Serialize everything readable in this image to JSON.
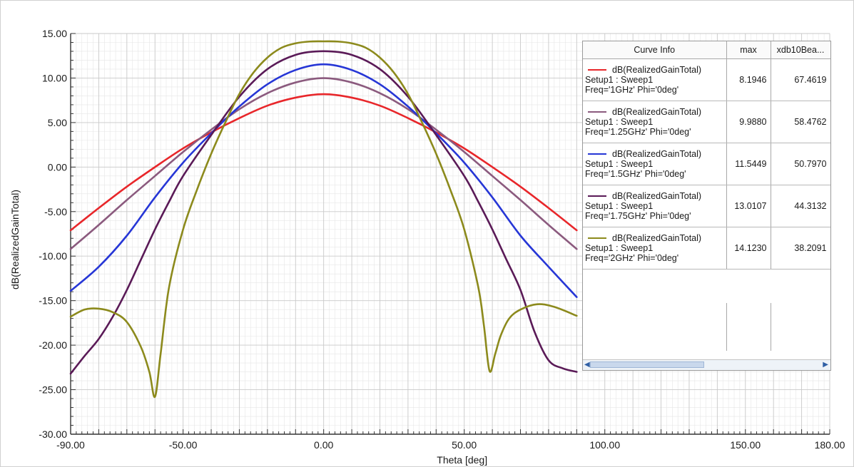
{
  "chart_data": {
    "type": "line",
    "title": "",
    "xlabel": "Theta [deg]",
    "ylabel": "dB(RealizedGainTotal)",
    "xlim": [
      -90,
      180
    ],
    "ylim": [
      -30,
      15
    ],
    "xticks": [
      "-90.00",
      "-50.00",
      "0.00",
      "50.00",
      "100.00",
      "150.00",
      "180.00"
    ],
    "yticks": [
      "15.00",
      "10.00",
      "5.00",
      "0.00",
      "-5.00",
      "-10.00",
      "-15.00",
      "-20.00",
      "-25.00",
      "-30.00"
    ],
    "grid": true,
    "series": [
      {
        "name": "dB(RealizedGainTotal) Setup1 : Sweep1 Freq='1GHz' Phi='0deg'",
        "color": "#e8262a",
        "x": [
          -90,
          -80,
          -70,
          -60,
          -50,
          -40,
          -30,
          -20,
          -10,
          0,
          10,
          20,
          30,
          40,
          50,
          60,
          70,
          80,
          90
        ],
        "y": [
          -7.1,
          -4.6,
          -2.2,
          0.0,
          2.1,
          3.9,
          5.5,
          6.9,
          7.8,
          8.19,
          7.8,
          6.9,
          5.5,
          3.9,
          2.1,
          0.0,
          -2.2,
          -4.6,
          -7.1
        ]
      },
      {
        "name": "dB(RealizedGainTotal) Setup1 : Sweep1 Freq='1.25GHz' Phi='0deg'",
        "color": "#8b5a7e",
        "x": [
          -90,
          -80,
          -70,
          -60,
          -50,
          -40,
          -30,
          -20,
          -10,
          0,
          10,
          20,
          30,
          40,
          50,
          60,
          70,
          80,
          90
        ],
        "y": [
          -9.2,
          -6.5,
          -3.7,
          -1.0,
          1.7,
          4.2,
          6.5,
          8.3,
          9.5,
          9.99,
          9.5,
          8.3,
          6.5,
          4.2,
          1.7,
          -1.0,
          -3.7,
          -6.5,
          -9.2
        ]
      },
      {
        "name": "dB(RealizedGainTotal) Setup1 : Sweep1 Freq='1.5GHz' Phi='0deg'",
        "color": "#2636d6",
        "x": [
          -90,
          -80,
          -70,
          -60,
          -50,
          -40,
          -30,
          -20,
          -10,
          0,
          10,
          20,
          30,
          40,
          50,
          60,
          70,
          80,
          90
        ],
        "y": [
          -13.9,
          -11.2,
          -7.7,
          -3.4,
          0.5,
          3.8,
          6.8,
          9.3,
          10.9,
          11.54,
          10.9,
          9.3,
          6.8,
          3.8,
          0.5,
          -3.4,
          -7.7,
          -11.2,
          -14.6
        ]
      },
      {
        "name": "dB(RealizedGainTotal) Setup1 : Sweep1 Freq='1.75GHz' Phi='0deg'",
        "color": "#5a1a57",
        "x": [
          -90,
          -85,
          -80,
          -75,
          -70,
          -65,
          -60,
          -55,
          -50,
          -40,
          -30,
          -20,
          -10,
          0,
          10,
          20,
          30,
          40,
          50,
          55,
          60,
          65,
          70,
          75,
          80,
          85,
          90
        ],
        "y": [
          -23.2,
          -21.2,
          -19.3,
          -16.8,
          -13.8,
          -10.4,
          -7.0,
          -3.9,
          -1.0,
          3.6,
          7.9,
          11.0,
          12.6,
          13.01,
          12.6,
          11.0,
          7.9,
          3.6,
          -1.0,
          -3.9,
          -7.0,
          -10.4,
          -13.8,
          -18.5,
          -21.7,
          -22.6,
          -23.0
        ]
      },
      {
        "name": "dB(RealizedGainTotal) Setup1 : Sweep1 Freq='2GHz' Phi='0deg'",
        "color": "#8c8a1c",
        "x": [
          -90,
          -85,
          -80,
          -75,
          -70,
          -65,
          -62,
          -60,
          -58,
          -55,
          -50,
          -45,
          -40,
          -35,
          -30,
          -25,
          -20,
          -15,
          -10,
          -5,
          0,
          5,
          10,
          15,
          20,
          25,
          30,
          35,
          40,
          45,
          50,
          55,
          57,
          59,
          61,
          63,
          66,
          70,
          76,
          82,
          90
        ],
        "y": [
          -16.8,
          -16.0,
          -15.9,
          -16.3,
          -17.4,
          -20.2,
          -23.0,
          -25.8,
          -21.0,
          -13.5,
          -7.0,
          -2.5,
          1.5,
          5.0,
          8.2,
          10.6,
          12.3,
          13.4,
          13.9,
          14.1,
          14.12,
          14.1,
          13.9,
          13.4,
          12.3,
          10.6,
          8.2,
          5.0,
          1.5,
          -2.5,
          -7.0,
          -13.5,
          -17.8,
          -22.9,
          -21.0,
          -18.9,
          -17.0,
          -16.0,
          -15.4,
          -15.7,
          -16.7
        ]
      }
    ]
  },
  "legend_table": {
    "headers": [
      "Curve Info",
      "max",
      "xdb10Bea..."
    ],
    "rows": [
      {
        "line1": "dB(RealizedGainTotal)",
        "line2": "Setup1 : Sweep1",
        "line3": "Freq='1GHz' Phi='0deg'",
        "max": "8.1946",
        "xdb": "67.4619",
        "color": "#e8262a"
      },
      {
        "line1": "dB(RealizedGainTotal)",
        "line2": "Setup1 : Sweep1",
        "line3": "Freq='1.25GHz' Phi='0deg'",
        "max": "9.9880",
        "xdb": "58.4762",
        "color": "#8b5a7e"
      },
      {
        "line1": "dB(RealizedGainTotal)",
        "line2": "Setup1 : Sweep1",
        "line3": "Freq='1.5GHz' Phi='0deg'",
        "max": "11.5449",
        "xdb": "50.7970",
        "color": "#2636d6"
      },
      {
        "line1": "dB(RealizedGainTotal)",
        "line2": "Setup1 : Sweep1",
        "line3": "Freq='1.75GHz' Phi='0deg'",
        "max": "13.0107",
        "xdb": "44.3132",
        "color": "#5a1a57"
      },
      {
        "line1": "dB(RealizedGainTotal)",
        "line2": "Setup1 : Sweep1",
        "line3": "Freq='2GHz' Phi='0deg'",
        "max": "14.1230",
        "xdb": "38.2091",
        "color": "#8c8a1c"
      }
    ]
  },
  "colors": {
    "grid_major": "#c9c9c9",
    "grid_minor": "#e6e6e6",
    "axis": "#333333"
  }
}
